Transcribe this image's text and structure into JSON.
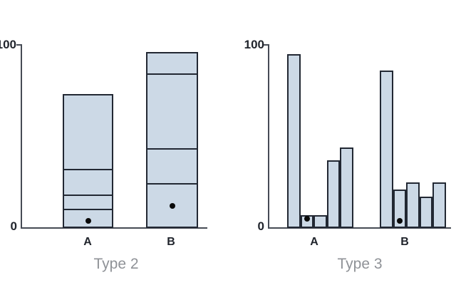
{
  "chart_data": [
    {
      "type": "bar",
      "variant": "stacked",
      "title": "Type 2",
      "categories": [
        "A",
        "B"
      ],
      "segments_bottom_to_top": {
        "A": [
          10,
          8,
          14,
          41
        ],
        "B": [
          24,
          19,
          41,
          12
        ]
      },
      "bar_totals": {
        "A": 73,
        "B": 96
      },
      "dot_markers": {
        "A": 4,
        "B": 12
      },
      "ylim": [
        0,
        100
      ],
      "ytick_labels": [
        "0",
        "100"
      ],
      "grid": false,
      "legend": "none"
    },
    {
      "type": "bar",
      "variant": "grouped",
      "title": "Type 3",
      "categories": [
        "A",
        "B"
      ],
      "group_values": {
        "A": [
          95,
          7,
          7,
          37,
          44
        ],
        "B": [
          86,
          21,
          25,
          17,
          25
        ]
      },
      "dot_markers": {
        "A": {
          "bar_index": 1,
          "value": 5
        },
        "B": {
          "bar_index": 1,
          "value": 4
        }
      },
      "ylim": [
        0,
        100
      ],
      "ytick_labels": [
        "0",
        "100"
      ],
      "grid": false,
      "legend": "none"
    }
  ],
  "colors": {
    "bar_fill": "#ccd9e6",
    "bar_stroke": "#222833",
    "axis_line": "#464b55",
    "tick_text": "#20242c",
    "title_text": "#8f9297",
    "dot": "#0a0a0a",
    "background": "#ffffff"
  }
}
